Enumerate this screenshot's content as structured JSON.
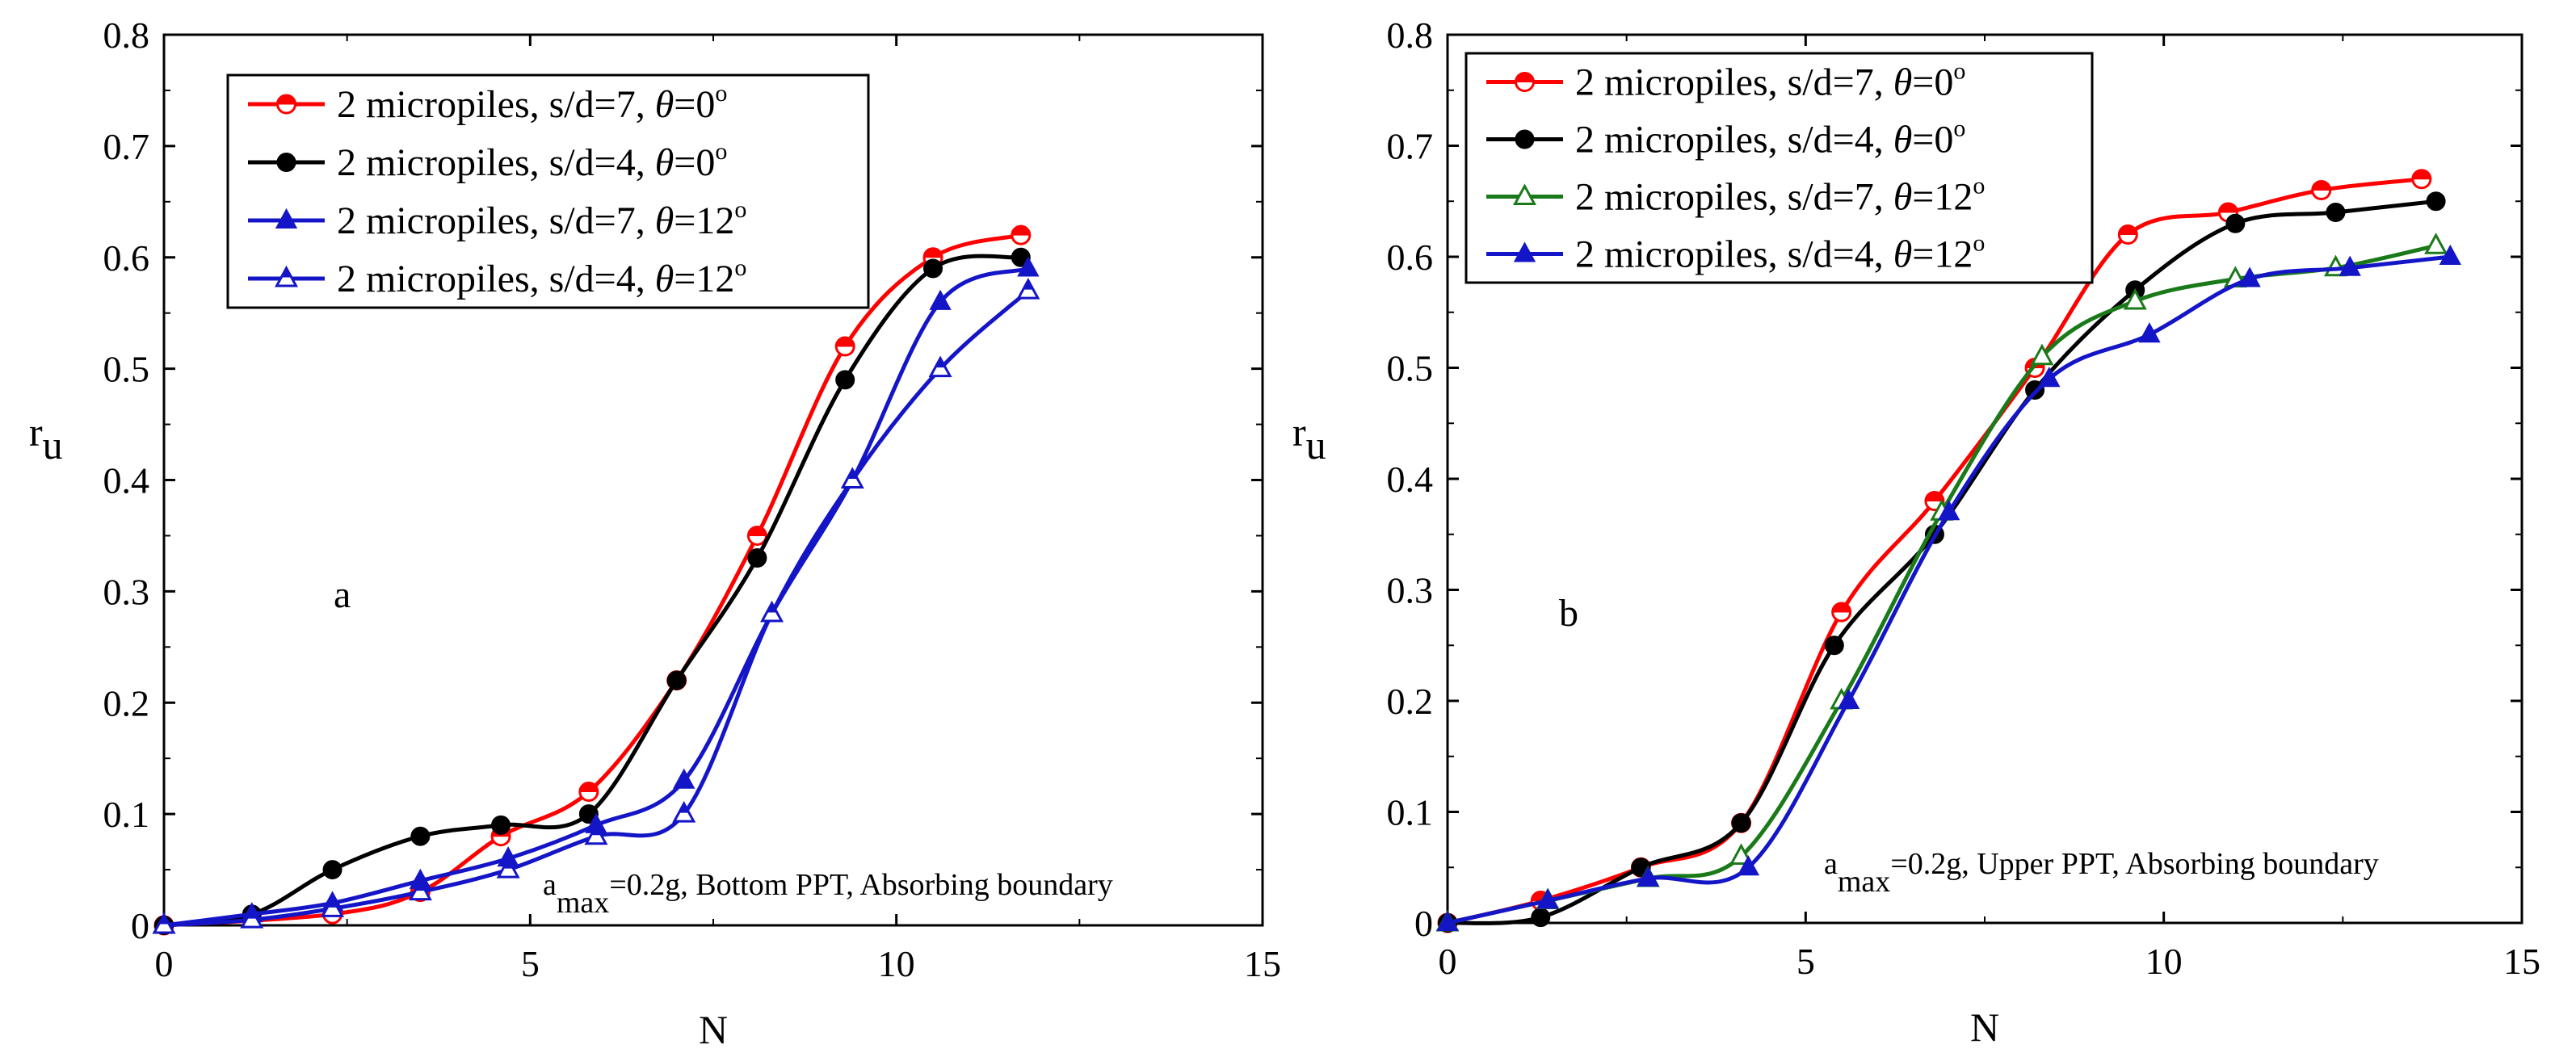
{
  "chart_data": [
    {
      "type": "line",
      "panel": "a",
      "xlabel": "N",
      "ylabel": "r",
      "ylabel_sub": "u",
      "xlim": [
        0,
        15
      ],
      "ylim": [
        0,
        0.8
      ],
      "xticks": [
        0,
        5,
        10,
        15
      ],
      "xtick_labels": [
        "0",
        "5",
        "10",
        "15"
      ],
      "yticks": [
        0,
        0.1,
        0.2,
        0.3,
        0.4,
        0.5,
        0.6,
        0.7,
        0.8
      ],
      "ytick_labels": [
        "0",
        "0.1",
        "0.2",
        "0.3",
        "0.4",
        "0.5",
        "0.6",
        "0.7",
        "0.8"
      ],
      "grid": false,
      "legend_position": "top-left",
      "annotation": {
        "a": "a",
        "sub": "max",
        "rest": "=0.2g, Bottom PPT, Absorbing boundary"
      },
      "series": [
        {
          "name": "2 micropiles, s/d=7, θ=0°",
          "label_main": "2 micropiles, s/d=7, ",
          "label_theta": "θ",
          "label_value": "=0",
          "label_sup": "o",
          "color": "#ff0000",
          "marker": "half-circle",
          "x": [
            0,
            2.3,
            3.5,
            4.6,
            5.8,
            7.0,
            8.1,
            9.3,
            10.5,
            11.7
          ],
          "y": [
            0,
            0.01,
            0.03,
            0.08,
            0.12,
            0.22,
            0.35,
            0.52,
            0.6,
            0.62
          ]
        },
        {
          "name": "2 micropiles, s/d=4, θ=0°",
          "label_main": "2 micropiles, s/d=4, ",
          "label_theta": "θ",
          "label_value": "=0",
          "label_sup": "o",
          "color": "#000000",
          "marker": "circle",
          "x": [
            0,
            1.2,
            2.3,
            3.5,
            4.6,
            5.8,
            7.0,
            8.1,
            9.3,
            10.5,
            11.7
          ],
          "y": [
            0,
            0.01,
            0.05,
            0.08,
            0.09,
            0.1,
            0.22,
            0.33,
            0.49,
            0.59,
            0.6
          ]
        },
        {
          "name": "2 micropiles, s/d=7, θ=12°",
          "label_main": "2 micropiles, s/d=7, ",
          "label_theta": "θ",
          "label_value": "=12",
          "label_sup": "o",
          "color": "#1515c8",
          "marker": "triangle",
          "x": [
            0,
            1.2,
            2.3,
            3.5,
            4.7,
            5.9,
            7.1,
            8.3,
            9.4,
            10.6,
            11.8
          ],
          "y": [
            0,
            0.01,
            0.02,
            0.04,
            0.06,
            0.09,
            0.13,
            0.28,
            0.4,
            0.56,
            0.59
          ]
        },
        {
          "name": "2 micropiles, s/d=4, θ=12°",
          "label_main": "2 micropiles, s/d=4, ",
          "label_theta": "θ",
          "label_value": "=12",
          "label_sup": "o",
          "color": "#1515c8",
          "marker": "half-triangle",
          "x": [
            0,
            1.2,
            2.3,
            3.5,
            4.7,
            5.9,
            7.1,
            8.3,
            9.4,
            10.6,
            11.8
          ],
          "y": [
            0,
            0.005,
            0.015,
            0.03,
            0.05,
            0.08,
            0.1,
            0.28,
            0.4,
            0.5,
            0.57
          ]
        }
      ]
    },
    {
      "type": "line",
      "panel": "b",
      "xlabel": "N",
      "ylabel": "r",
      "ylabel_sub": "u",
      "xlim": [
        0,
        15
      ],
      "ylim": [
        0,
        0.8
      ],
      "xticks": [
        0,
        5,
        10,
        15
      ],
      "xtick_labels": [
        "0",
        "5",
        "10",
        "15"
      ],
      "yticks": [
        0,
        0.1,
        0.2,
        0.3,
        0.4,
        0.5,
        0.6,
        0.7,
        0.8
      ],
      "ytick_labels": [
        "0",
        "0.1",
        "0.2",
        "0.3",
        "0.4",
        "0.5",
        "0.6",
        "0.7",
        "0.8"
      ],
      "grid": false,
      "legend_position": "top-left",
      "annotation": {
        "a": "a",
        "sub": "max",
        "rest": "=0.2g,  Upper PPT, Absorbing boundary"
      },
      "series": [
        {
          "name": "2 micropiles, s/d=7, θ=0°",
          "label_main": "2 micropiles, s/d=7, ",
          "label_theta": "θ",
          "label_value": "=0",
          "label_sup": "o",
          "color": "#ff0000",
          "marker": "half-circle",
          "x": [
            0,
            1.3,
            2.7,
            4.1,
            5.5,
            6.8,
            8.2,
            9.5,
            10.9,
            12.2,
            13.6
          ],
          "y": [
            0,
            0.02,
            0.05,
            0.09,
            0.28,
            0.38,
            0.5,
            0.62,
            0.64,
            0.66,
            0.67
          ]
        },
        {
          "name": "2 micropiles, s/d=4, θ=0°",
          "label_main": "2 micropiles, s/d=4, ",
          "label_theta": "θ",
          "label_value": "=0",
          "label_sup": "o",
          "color": "#000000",
          "marker": "circle",
          "x": [
            0,
            1.3,
            2.7,
            4.1,
            5.4,
            6.8,
            8.2,
            9.6,
            11.0,
            12.4,
            13.8
          ],
          "y": [
            0,
            0.005,
            0.05,
            0.09,
            0.25,
            0.35,
            0.48,
            0.57,
            0.63,
            0.64,
            0.65
          ]
        },
        {
          "name": "2 micropiles, s/d=7, θ=12°",
          "label_main": "2 micropiles, s/d=7, ",
          "label_theta": "θ",
          "label_value": "=12",
          "label_sup": "o",
          "color": "#1a7a1a",
          "marker": "open-triangle",
          "x": [
            0,
            1.4,
            2.8,
            4.1,
            5.5,
            6.9,
            8.3,
            9.6,
            11.0,
            12.4,
            13.8
          ],
          "y": [
            0,
            0.02,
            0.04,
            0.06,
            0.2,
            0.37,
            0.51,
            0.56,
            0.58,
            0.59,
            0.61
          ]
        },
        {
          "name": "2 micropiles, s/d=4, θ=12°",
          "label_main": "2 micropiles, s/d=4, ",
          "label_theta": "θ",
          "label_value": "=12",
          "label_sup": "o",
          "color": "#1515c8",
          "marker": "triangle",
          "x": [
            0,
            1.4,
            2.8,
            4.2,
            5.6,
            7.0,
            8.4,
            9.8,
            11.2,
            12.6,
            14.0
          ],
          "y": [
            0,
            0.02,
            0.04,
            0.05,
            0.2,
            0.37,
            0.49,
            0.53,
            0.58,
            0.59,
            0.6
          ]
        }
      ]
    }
  ]
}
